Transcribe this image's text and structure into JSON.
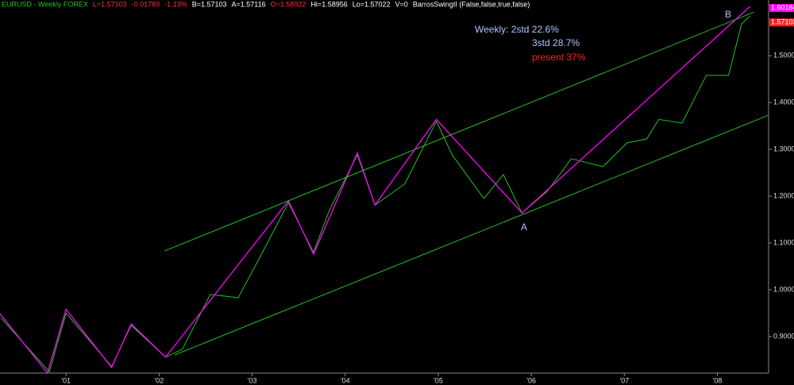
{
  "header": {
    "symbol": "EURUSD - Weekly FOREX",
    "fields": [
      {
        "text": "L=1.57103",
        "color": "#ff3030"
      },
      {
        "text": "-0.01789",
        "color": "#ff3030"
      },
      {
        "text": "-1.13%",
        "color": "#ff3030"
      },
      {
        "text": "B=1.57103",
        "color": "#ffffff"
      },
      {
        "text": "A=1.57116",
        "color": "#ffffff"
      },
      {
        "text": "O=1.58922",
        "color": "#ff3030"
      },
      {
        "text": "Hi=1.58956",
        "color": "#ffffff"
      },
      {
        "text": "Lo=1.57022",
        "color": "#ffffff"
      },
      {
        "text": "V=0",
        "color": "#ffffff"
      },
      {
        "text": "BarrosSwingII (False,false,true,false)",
        "color": "#ffffff"
      }
    ]
  },
  "chart_data": {
    "type": "line",
    "annotations": [
      {
        "text": "Weekly: 2std 22.6%",
        "color": "#b0c4ff"
      },
      {
        "text": "3std 28.7%",
        "color": "#b0c4ff"
      },
      {
        "text": "present 37%",
        "color": "#ff2020"
      },
      {
        "text": "A",
        "color": "#b0c4ff"
      },
      {
        "text": "B",
        "color": "#b0c4ff"
      }
    ],
    "xlim": [
      2000.29,
      2008.55
    ],
    "xticks": [
      {
        "value": 2001,
        "label": "'01"
      },
      {
        "value": 2002,
        "label": "'02"
      },
      {
        "value": 2003,
        "label": "'03"
      },
      {
        "value": 2004,
        "label": "'04"
      },
      {
        "value": 2005,
        "label": "'05"
      },
      {
        "value": 2006,
        "label": "'06"
      },
      {
        "value": 2007,
        "label": "'07"
      },
      {
        "value": 2008,
        "label": "'08"
      }
    ],
    "ylim": [
      0.822,
      1.619
    ],
    "yticks": [
      {
        "value": 0.9,
        "label": "0.90000"
      },
      {
        "value": 1.0,
        "label": "1.00000"
      },
      {
        "value": 1.1,
        "label": "1.10000"
      },
      {
        "value": 1.2,
        "label": "1.20000"
      },
      {
        "value": 1.3,
        "label": "1.30000"
      },
      {
        "value": 1.4,
        "label": "1.40000"
      },
      {
        "value": 1.5,
        "label": "1.50000"
      }
    ],
    "price_markers": [
      {
        "value": 1.60184,
        "color": "#ff00ff"
      },
      {
        "value": 1.57103,
        "color": "#ff2020"
      }
    ],
    "series": [
      {
        "color": "#22c022",
        "x": [
          2000.3,
          2000.82,
          2001.0,
          2001.49,
          2001.7,
          2002.07,
          2002.25,
          2002.55,
          2002.85,
          2003.1,
          2003.39,
          2003.66,
          2003.83,
          2004.13,
          2004.32,
          2004.64,
          2004.98,
          2005.15,
          2005.49,
          2005.7,
          2005.9,
          2006.17,
          2006.43,
          2006.77,
          2007.03,
          2007.24,
          2007.37,
          2007.62,
          2007.88,
          2008.12,
          2008.26,
          2008.35
        ],
        "values": [
          0.94,
          0.825,
          0.95,
          0.836,
          0.924,
          0.856,
          0.873,
          0.99,
          0.983,
          1.076,
          1.186,
          1.08,
          1.17,
          1.288,
          1.181,
          1.226,
          1.36,
          1.288,
          1.195,
          1.246,
          1.164,
          1.21,
          1.28,
          1.263,
          1.314,
          1.322,
          1.364,
          1.356,
          1.458,
          1.458,
          1.568,
          1.585
        ]
      },
      {
        "color": "#ff00ff",
        "x": [
          2000.29,
          2000.8,
          2001.0,
          2001.49,
          2001.7,
          2002.07,
          2003.39,
          2003.66,
          2004.13,
          2004.32,
          2004.98,
          2005.9,
          2008.35
        ],
        "values": [
          0.949,
          0.822,
          0.958,
          0.834,
          0.927,
          0.856,
          1.19,
          1.076,
          1.292,
          1.181,
          1.364,
          1.164,
          1.605
        ]
      },
      {
        "color": "#22c022",
        "x": [
          2002.06,
          2008.39
        ],
        "values": [
          1.083,
          1.593
        ]
      },
      {
        "color": "#22c022",
        "x": [
          2002.17,
          2008.55
        ],
        "values": [
          0.861,
          1.373
        ]
      }
    ]
  }
}
